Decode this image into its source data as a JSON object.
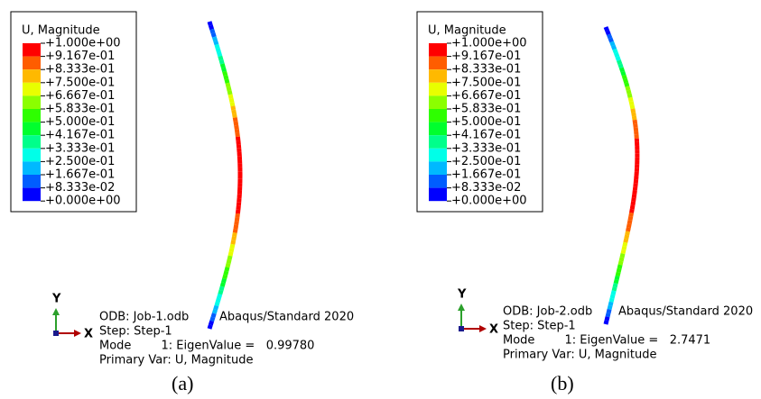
{
  "panels": [
    {
      "legend": {
        "title": "U, Magnitude",
        "labels": [
          "+1.000e+00",
          "+9.167e-01",
          "+8.333e-01",
          "+7.500e-01",
          "+6.667e-01",
          "+5.833e-01",
          "+5.000e-01",
          "+4.167e-01",
          "+3.333e-01",
          "+2.500e-01",
          "+1.667e-01",
          "+8.333e-02",
          "+0.000e+00"
        ]
      },
      "triad": {
        "y": "Y",
        "x": "X"
      },
      "info": {
        "odb": "ODB: Job-1.odb",
        "version": "Abaqus/Standard 2020",
        "step": "Step: Step-1",
        "mode": "Mode        1: EigenValue =   0.99780",
        "var": "Primary Var: U, Magnitude"
      },
      "caption": "(a)"
    },
    {
      "legend": {
        "title": "U, Magnitude",
        "labels": [
          "+1.000e+00",
          "+9.167e-01",
          "+8.333e-01",
          "+7.500e-01",
          "+6.667e-01",
          "+5.833e-01",
          "+5.000e-01",
          "+4.167e-01",
          "+3.333e-01",
          "+2.500e-01",
          "+1.667e-01",
          "+8.333e-02",
          "+0.000e+00"
        ]
      },
      "triad": {
        "y": "Y",
        "x": "X"
      },
      "info": {
        "odb": "ODB: Job-2.odb",
        "version": "Abaqus/Standard 2020",
        "step": "Step: Step-1",
        "mode": "Mode        1: EigenValue =   2.7471",
        "var": "Primary Var: U, Magnitude"
      },
      "caption": "(b)"
    }
  ]
}
